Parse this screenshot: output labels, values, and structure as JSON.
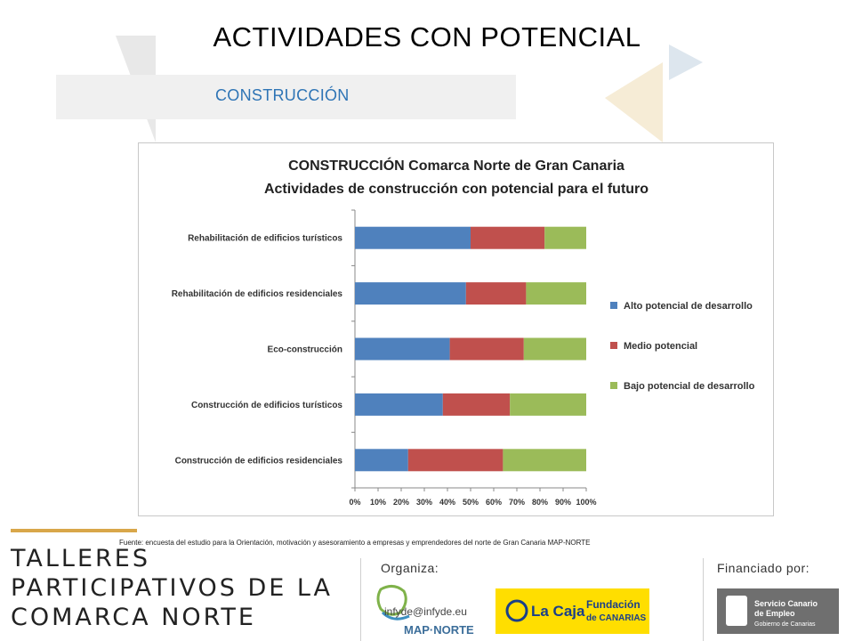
{
  "page": {
    "title": "ACTIVIDADES CON POTENCIAL",
    "section": "CONSTRUCCIÓN",
    "source": "Fuente: encuesta del estudio para la Orientación, motivación y asesoramiento a empresas y emprendedores del norte de Gran Canaria MAP-NORTE"
  },
  "footer": {
    "title_lines": [
      "TALLERES",
      "PARTICIPATIVOS DE LA",
      "COMARCA NORTE"
    ],
    "organiza_label": "Organiza:",
    "financiado_label": "Financiado por:",
    "email": "infyde@infyde.eu",
    "mapnorte_text": "MAP·NORTE",
    "caja_line1": "Fundación",
    "caja_brand": "La Caja",
    "caja_line2": "de CANARIAS",
    "sce_line1": "Servicio Canario",
    "sce_line2": "de Empleo",
    "sce_line3": "Gobierno de Canarias"
  },
  "colors": {
    "alto": "#4f81bd",
    "medio": "#c0504d",
    "bajo": "#9bbb59",
    "accent_blue": "#2e74b5",
    "gold": "#d9a74a"
  },
  "chart_data": {
    "type": "bar",
    "orientation": "horizontal",
    "stacked": "percent",
    "title": "CONSTRUCCIÓN Comarca Norte de Gran Canaria",
    "subtitle": "Actividades de construcción con potencial para el futuro",
    "categories": [
      "Rehabilitación de edificios turísticos",
      "Rehabilitación de edificios residenciales",
      "Eco-construcción",
      "Construcción de edificios turísticos",
      "Construcción de edificios residenciales"
    ],
    "series": [
      {
        "name": "Alto potencial de desarrollo",
        "values": [
          50,
          48,
          41,
          38,
          23
        ]
      },
      {
        "name": "Medio potencial",
        "values": [
          32,
          26,
          32,
          29,
          41
        ]
      },
      {
        "name": "Bajo potencial de desarrollo",
        "values": [
          18,
          26,
          27,
          33,
          36
        ]
      }
    ],
    "xlim": [
      0,
      100
    ],
    "xticks": [
      "0%",
      "10%",
      "20%",
      "30%",
      "40%",
      "50%",
      "60%",
      "70%",
      "80%",
      "90%",
      "100%"
    ],
    "grid": false,
    "legend_position": "right"
  }
}
